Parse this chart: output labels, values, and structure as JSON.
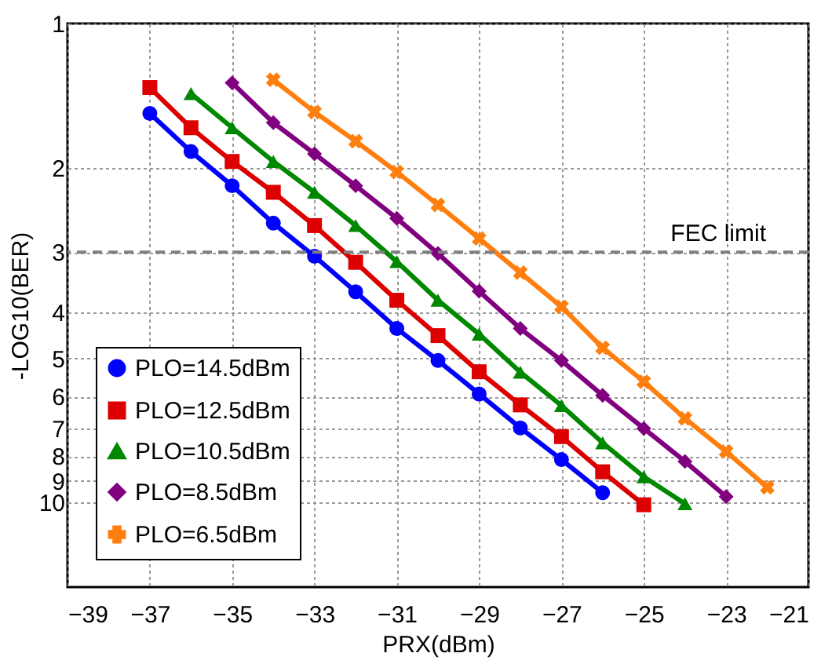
{
  "chart_data": {
    "type": "line",
    "xlabel": "PRX(dBm)",
    "ylabel": "-LOG10(BER)",
    "xlim": [
      -39,
      -21
    ],
    "xticks": [
      -39,
      -37,
      -35,
      -33,
      -31,
      -29,
      -27,
      -25,
      -23,
      -21
    ],
    "ylim": [
      15,
      1
    ],
    "yticks": [
      1,
      2,
      3,
      4,
      5,
      6,
      7,
      8,
      9,
      10
    ],
    "log": "y",
    "grid": true,
    "legend": "bottom left",
    "line_style": "solid",
    "ref_lines": [
      {
        "axis": "y",
        "value": 3,
        "label": "FEC limit",
        "color": "#808080",
        "line_style": "dashed"
      }
    ],
    "series": [
      {
        "name": "PLO=14.5dBm",
        "color": "#0000ff",
        "marker": "circle",
        "x": [
          -37,
          -36,
          -35,
          -34,
          -33,
          -32,
          -31,
          -30,
          -29,
          -28,
          -27,
          -26
        ],
        "values": [
          1.54,
          1.85,
          2.18,
          2.61,
          3.06,
          3.63,
          4.33,
          5.05,
          5.93,
          6.98,
          8.13,
          9.53
        ]
      },
      {
        "name": "PLO=12.5dBm",
        "color": "#dd0000",
        "marker": "square",
        "x": [
          -37,
          -36,
          -35,
          -34,
          -33,
          -32,
          -31,
          -30,
          -29,
          -28,
          -27,
          -26,
          -25
        ],
        "values": [
          1.36,
          1.65,
          1.94,
          2.25,
          2.64,
          3.15,
          3.78,
          4.48,
          5.33,
          6.25,
          7.28,
          8.62,
          10.1
        ]
      },
      {
        "name": "PLO=10.5dBm",
        "color": "#008800",
        "marker": "triangle",
        "x": [
          -36,
          -35,
          -34,
          -33,
          -32,
          -31,
          -30,
          -29,
          -28,
          -27,
          -26,
          -25,
          -24
        ],
        "values": [
          1.4,
          1.65,
          1.94,
          2.25,
          2.64,
          3.14,
          3.78,
          4.45,
          5.34,
          6.27,
          7.5,
          8.83,
          10.05
        ]
      },
      {
        "name": "PLO=8.5dBm",
        "color": "#800080",
        "marker": "diamond",
        "x": [
          -35,
          -34,
          -33,
          -32,
          -31,
          -30,
          -29,
          -28,
          -27,
          -26,
          -25,
          -24,
          -23
        ],
        "values": [
          1.33,
          1.61,
          1.87,
          2.18,
          2.55,
          3.02,
          3.62,
          4.33,
          5.05,
          5.97,
          7.0,
          8.2,
          9.71
        ]
      },
      {
        "name": "PLO=6.5dBm",
        "color": "#ff7f0e",
        "marker": "cross",
        "x": [
          -34,
          -33,
          -32,
          -31,
          -30,
          -29,
          -28,
          -27,
          -26,
          -25,
          -24,
          -23,
          -22
        ],
        "values": [
          1.31,
          1.53,
          1.76,
          2.04,
          2.39,
          2.81,
          3.31,
          3.9,
          4.75,
          5.59,
          6.67,
          7.82,
          9.29
        ]
      }
    ]
  }
}
